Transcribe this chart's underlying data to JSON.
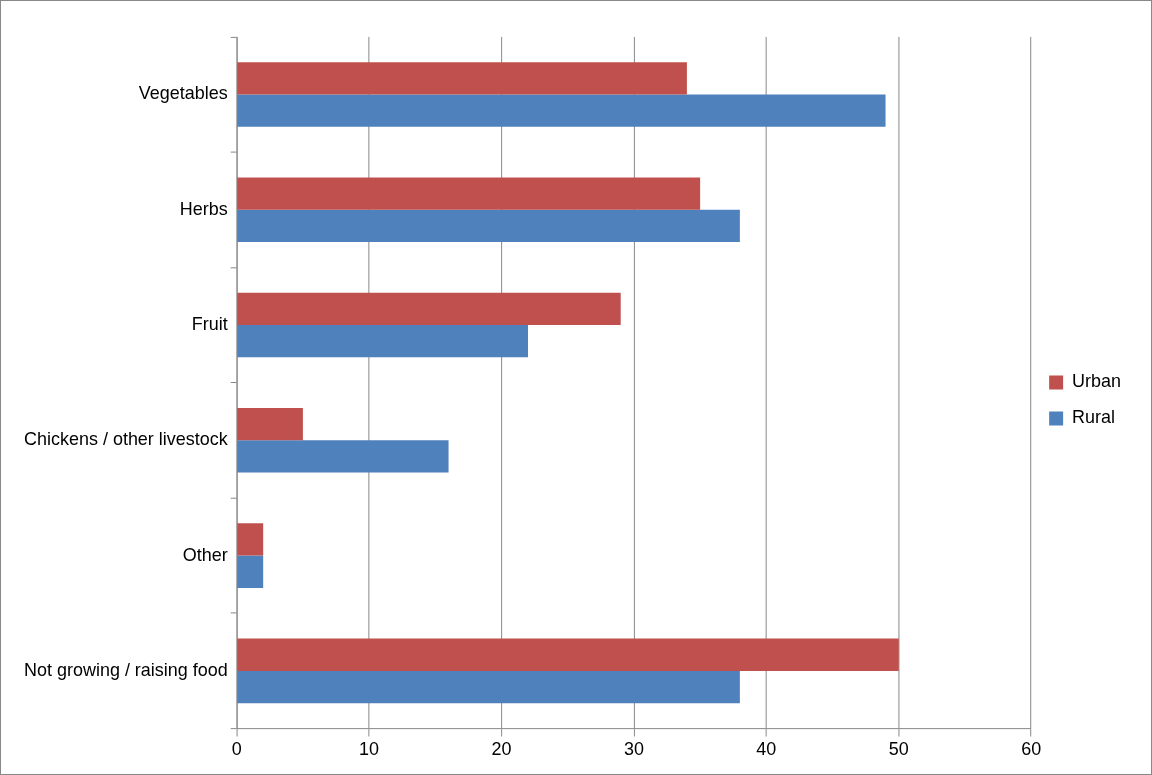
{
  "chart_data": {
    "type": "bar",
    "orientation": "horizontal",
    "categories": [
      "Vegetables",
      "Herbs",
      "Fruit",
      "Chickens / other livestock",
      "Other",
      "Not growing / raising food"
    ],
    "series": [
      {
        "name": "Urban",
        "color": "#c0504d",
        "values": [
          34,
          35,
          29,
          5,
          2,
          50
        ]
      },
      {
        "name": "Rural",
        "color": "#4f81bd",
        "values": [
          49,
          38,
          22,
          16,
          2,
          38
        ]
      }
    ],
    "xlim": [
      0,
      60
    ],
    "xticks": [
      0,
      10,
      20,
      30,
      40,
      50,
      60
    ],
    "grid": "x",
    "legend": "right"
  }
}
